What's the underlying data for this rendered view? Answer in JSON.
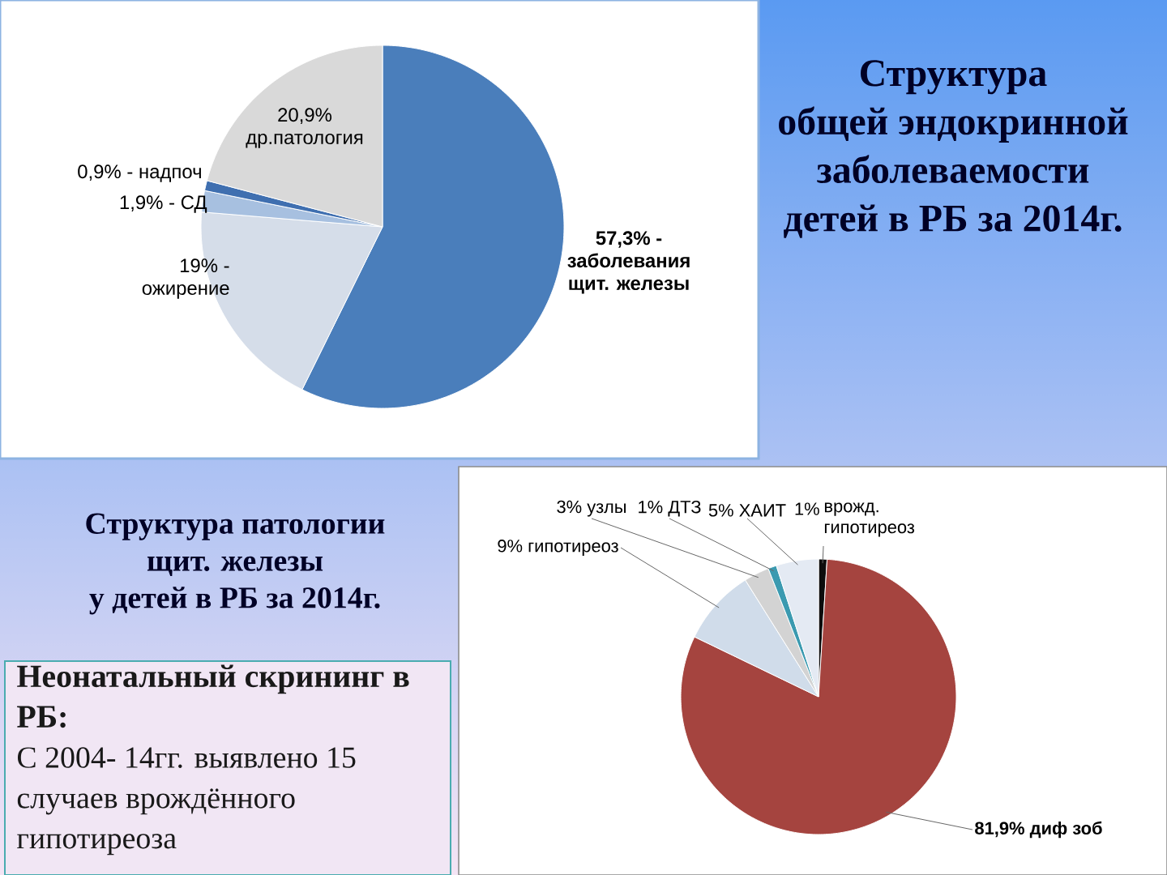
{
  "chart_data": [
    {
      "type": "pie",
      "title": "Структура\nобщей эндокринной\nзаболеваемости\nдетей в РБ за 2014г.",
      "categories": [
        "заболевания щит. железы",
        "ожирение",
        "СД",
        "надпоч",
        "др.патология"
      ],
      "values": [
        57.3,
        19,
        1.9,
        0.9,
        20.9
      ],
      "colors": [
        "#4a7ebb",
        "#d5dde9",
        "#a7c0e0",
        "#3f6fb0",
        "#d9d9d9"
      ],
      "value_labels": [
        "57,3% -",
        "19% -",
        "1,9% -",
        "0,9% -",
        "20,9%"
      ]
    },
    {
      "type": "pie",
      "title": "Структура патологии\nщит. железы\nу детей в РБ за 2014г.",
      "categories": [
        "врожд. гипотиреоз",
        "диф зоб",
        "гипотиреоз",
        "узлы",
        "ДТЗ",
        "ХАИТ"
      ],
      "values": [
        1,
        81.9,
        9,
        3,
        1,
        5
      ],
      "colors": [
        "#0d0d0d",
        "#a5443f",
        "#d0dcea",
        "#d3d3d3",
        "#3b9ab0",
        "#e4eaf3"
      ],
      "value_labels": [
        "1%",
        "81,9%",
        "9%",
        "3%",
        "1%",
        "5%"
      ]
    },
    {
      "type": "other",
      "title": "Неонатальный скрининг в РБ:",
      "annotations": [
        "С 2004- 14гг. выявлено 15 случаев врождённого гипотиреоза"
      ]
    }
  ]
}
